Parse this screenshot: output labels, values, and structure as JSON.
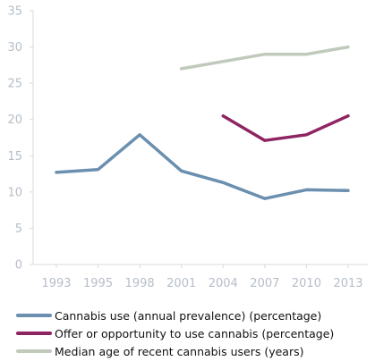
{
  "chart_data": {
    "type": "line",
    "x": [
      1993,
      1995,
      1998,
      2001,
      2004,
      2007,
      2010,
      2013
    ],
    "tick_labels": [
      "1993",
      "1995",
      "1998",
      "2001",
      "2004",
      "2007",
      "2010",
      "2013"
    ],
    "y_ticks": [
      "0",
      "5",
      "10",
      "15",
      "20",
      "25",
      "30",
      "35"
    ],
    "ylim": [
      0,
      35
    ],
    "grid": false,
    "legend_position": "bottom",
    "series": [
      {
        "name": "Cannabis use (annual prevalence) (percentage)",
        "color": "#6a8faf",
        "values": [
          12.7,
          13.1,
          17.9,
          12.9,
          11.3,
          9.1,
          10.3,
          10.2
        ]
      },
      {
        "name": "Offer or opportunity to use cannabis (percentage)",
        "color": "#8e2461",
        "values": [
          null,
          null,
          null,
          null,
          20.5,
          17.1,
          17.9,
          20.5
        ]
      },
      {
        "name": "Median age of recent cannabis users (years)",
        "color": "#bfcabc",
        "values": [
          null,
          null,
          null,
          27,
          28,
          29,
          29,
          30
        ]
      }
    ]
  }
}
